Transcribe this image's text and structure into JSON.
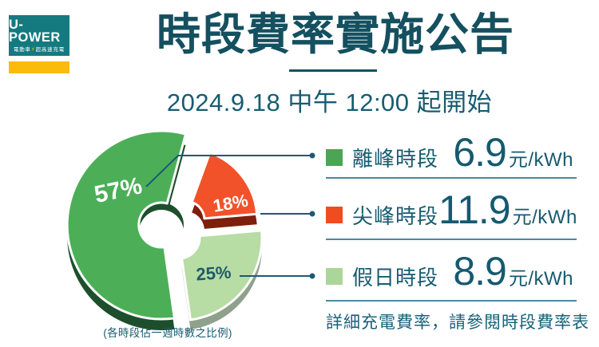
{
  "logo": {
    "brand": "U-POWER",
    "tagline_left": "電動車",
    "tagline_bolt": "⚡",
    "tagline_right": "超高速充電"
  },
  "header": {
    "title": "時段費率實施公告",
    "subtitle": "2024.9.18 中午 12:00 起開始"
  },
  "chart_data": {
    "type": "pie",
    "style": "3d-exploded-donut",
    "caption": "(各時段佔一週時數之比例)",
    "categories": [
      "離峰時段",
      "尖峰時段",
      "假日時段"
    ],
    "values": [
      57,
      18,
      25
    ],
    "slices": [
      {
        "label": "離峰時段",
        "pct": 57,
        "display": "57%",
        "color": "#4CAF58",
        "side_color": "#1D4F2C",
        "label_color": "#FFFFFF"
      },
      {
        "label": "尖峰時段",
        "pct": 18,
        "display": "18%",
        "color": "#F1522A",
        "side_color": "#7E1E0C",
        "label_color": "#FFFFFF"
      },
      {
        "label": "假日時段",
        "pct": 25,
        "display": "25%",
        "color": "#B7DCA4",
        "side_color": "#8FA18C",
        "label_color": "#1F5B66"
      }
    ],
    "legend_position": "right"
  },
  "legend": {
    "rows": [
      {
        "label": "離峰時段",
        "value": "6.9",
        "unit": "元/kWh",
        "swatch": "#4CA554"
      },
      {
        "label": "尖峰時段",
        "value": "11.9",
        "unit": "元/kWh",
        "swatch": "#EE4D1F"
      },
      {
        "label": "假日時段",
        "value": "8.9",
        "unit": "元/kWh",
        "swatch": "#ABD699"
      }
    ],
    "footnote": "詳細充電費率，請參閱時段費率表"
  },
  "colors": {
    "title_teal": "#14505F",
    "text_teal": "#175C70",
    "divider": "#4D87A0",
    "connector": "#1D5A74",
    "logo_teal": "#147A80",
    "logo_yellow": "#FBBB0A"
  }
}
